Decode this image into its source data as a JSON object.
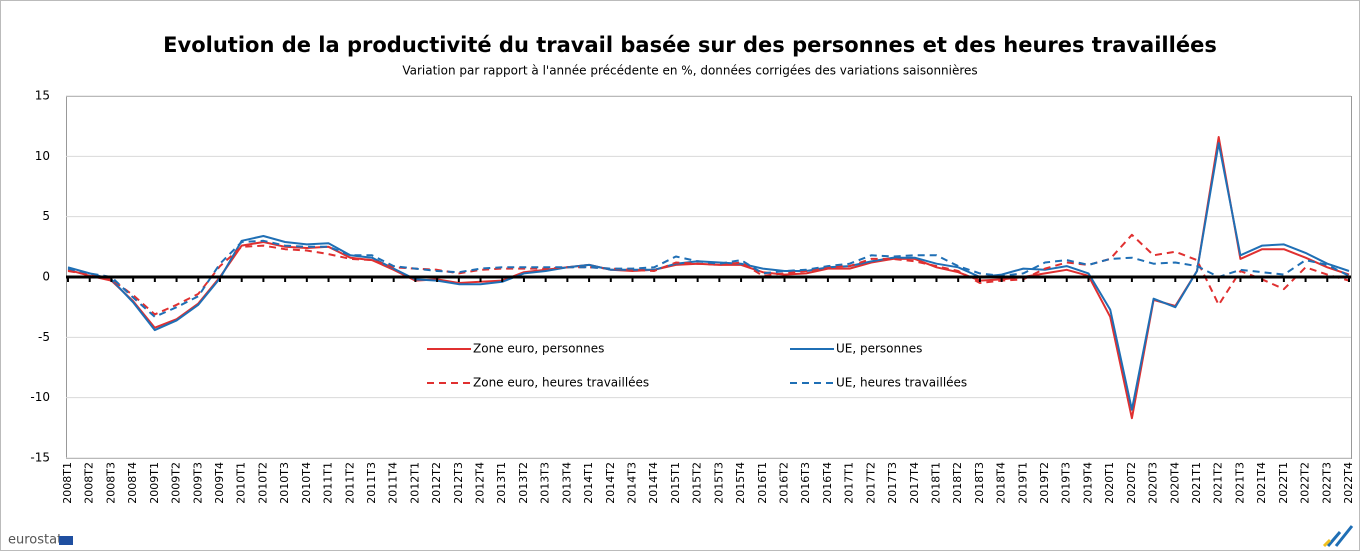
{
  "chart_data": {
    "type": "line",
    "title": "Evolution de la productivité du travail basée sur des personnes et des heures travaillées",
    "subtitle": "Variation par rapport à l'année précédente en %, données corrigées des variations saisonnières",
    "categories": [
      "2008T1",
      "2008T2",
      "2008T3",
      "2008T4",
      "2009T1",
      "2009T2",
      "2009T3",
      "2009T4",
      "2010T1",
      "2010T2",
      "2010T3",
      "2010T4",
      "2011T1",
      "2011T2",
      "2011T3",
      "2011T4",
      "2012T1",
      "2012T2",
      "2012T3",
      "2012T4",
      "2013T1",
      "2013T2",
      "2013T3",
      "2013T4",
      "2014T1",
      "2014T2",
      "2014T3",
      "2014T4",
      "2015T1",
      "2015T2",
      "2015T3",
      "2015T4",
      "2016T1",
      "2016T2",
      "2016T3",
      "2016T4",
      "2017T1",
      "2017T2",
      "2017T3",
      "2017T4",
      "2018T1",
      "2018T2",
      "2018T3",
      "2018T4",
      "2019T1",
      "2019T2",
      "2019T3",
      "2019T4",
      "2020T1",
      "2020T2",
      "2020T3",
      "2020T4",
      "2021T1",
      "2021T2",
      "2021T3",
      "2021T4",
      "2022T1",
      "2022T2",
      "2022T3",
      "2022T4"
    ],
    "series": [
      {
        "name": "Zone euro, personnes",
        "color": "#e03030",
        "style": "solid",
        "values": [
          0.6,
          0.1,
          -0.3,
          -2.0,
          -4.2,
          -3.5,
          -2.2,
          0.0,
          2.6,
          2.9,
          2.5,
          2.4,
          2.5,
          1.6,
          1.4,
          0.6,
          -0.3,
          -0.2,
          -0.5,
          -0.4,
          -0.3,
          0.4,
          0.6,
          0.8,
          1.0,
          0.6,
          0.5,
          0.6,
          1.0,
          1.1,
          1.0,
          1.0,
          0.4,
          0.2,
          0.3,
          0.7,
          0.7,
          1.2,
          1.5,
          1.5,
          0.8,
          0.4,
          -0.3,
          -0.2,
          0.0,
          0.3,
          0.6,
          0.1,
          -3.3,
          -11.7,
          -1.9,
          -2.4,
          0.5,
          11.6,
          1.5,
          2.3,
          2.3,
          1.6,
          0.8,
          0.2
        ]
      },
      {
        "name": "UE, personnes",
        "color": "#1f6fb5",
        "style": "solid",
        "values": [
          0.8,
          0.3,
          -0.2,
          -2.1,
          -4.4,
          -3.6,
          -2.3,
          -0.1,
          3.0,
          3.4,
          2.9,
          2.7,
          2.8,
          1.8,
          1.6,
          0.7,
          -0.2,
          -0.3,
          -0.6,
          -0.6,
          -0.4,
          0.3,
          0.5,
          0.8,
          1.0,
          0.6,
          0.6,
          0.6,
          1.1,
          1.3,
          1.2,
          1.1,
          0.7,
          0.5,
          0.5,
          0.8,
          0.9,
          1.3,
          1.6,
          1.6,
          1.1,
          0.8,
          0.0,
          0.2,
          0.7,
          0.6,
          0.9,
          0.3,
          -2.7,
          -11.0,
          -1.8,
          -2.5,
          0.5,
          11.1,
          1.8,
          2.6,
          2.7,
          2.0,
          1.1,
          0.5
        ]
      },
      {
        "name": "Zone euro, heures travaillées",
        "color": "#e03030",
        "style": "dashed",
        "values": [
          0.5,
          0.2,
          -0.2,
          -1.5,
          -3.1,
          -2.3,
          -1.4,
          0.9,
          2.5,
          2.6,
          2.3,
          2.2,
          1.9,
          1.5,
          1.4,
          0.8,
          0.7,
          0.6,
          0.3,
          0.6,
          0.7,
          0.7,
          0.7,
          0.8,
          0.8,
          0.7,
          0.6,
          0.5,
          1.2,
          1.1,
          1.0,
          1.2,
          0.1,
          0.3,
          0.5,
          0.8,
          0.9,
          1.5,
          1.5,
          1.3,
          0.9,
          0.5,
          -0.5,
          -0.3,
          -0.2,
          0.7,
          1.2,
          1.0,
          1.5,
          3.5,
          1.8,
          2.1,
          1.4,
          -2.3,
          0.5,
          -0.2,
          -1.0,
          0.8,
          0.2,
          -0.3
        ]
      },
      {
        "name": "UE, heures travaillées",
        "color": "#1f6fb5",
        "style": "dashed",
        "values": [
          0.7,
          0.3,
          0.0,
          -1.7,
          -3.3,
          -2.5,
          -1.6,
          1.1,
          2.9,
          3.0,
          2.6,
          2.5,
          2.5,
          1.8,
          1.8,
          0.9,
          0.7,
          0.5,
          0.4,
          0.7,
          0.8,
          0.8,
          0.8,
          0.8,
          0.8,
          0.7,
          0.7,
          0.8,
          1.7,
          1.3,
          1.1,
          1.4,
          0.3,
          0.5,
          0.6,
          0.9,
          1.1,
          1.8,
          1.7,
          1.8,
          1.8,
          0.9,
          0.3,
          0.1,
          0.3,
          1.2,
          1.4,
          1.0,
          1.5,
          1.6,
          1.1,
          1.2,
          0.9,
          0.0,
          0.6,
          0.4,
          0.2,
          1.4,
          1.0,
          0.1
        ]
      }
    ],
    "ylim": [
      -15,
      15
    ],
    "yticks": [
      -15,
      -10,
      -5,
      0,
      5,
      10,
      15
    ],
    "grid": true
  },
  "footer": {
    "logo": "eurostat"
  }
}
